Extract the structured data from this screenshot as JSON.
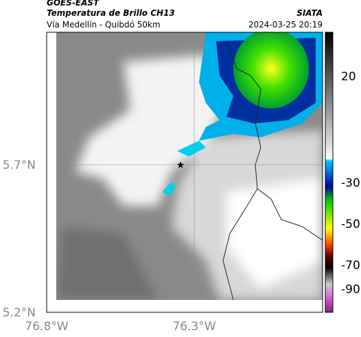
{
  "header": {
    "source": "GOES-EAST",
    "title": "Temperatura de Brillo CH13",
    "subtitle": "Vía Medellín - Quibdó 50km",
    "agency": "SIATA",
    "timestamp": "2024-03-25 20:19"
  },
  "map": {
    "lat_labels": [
      "5.7°N",
      "5.2°N"
    ],
    "lon_labels": [
      "76.8°W",
      "76.3°W"
    ]
  },
  "colorbar": {
    "tick_labels": [
      "20",
      "-30",
      "-50",
      "-70",
      "-90"
    ]
  }
}
